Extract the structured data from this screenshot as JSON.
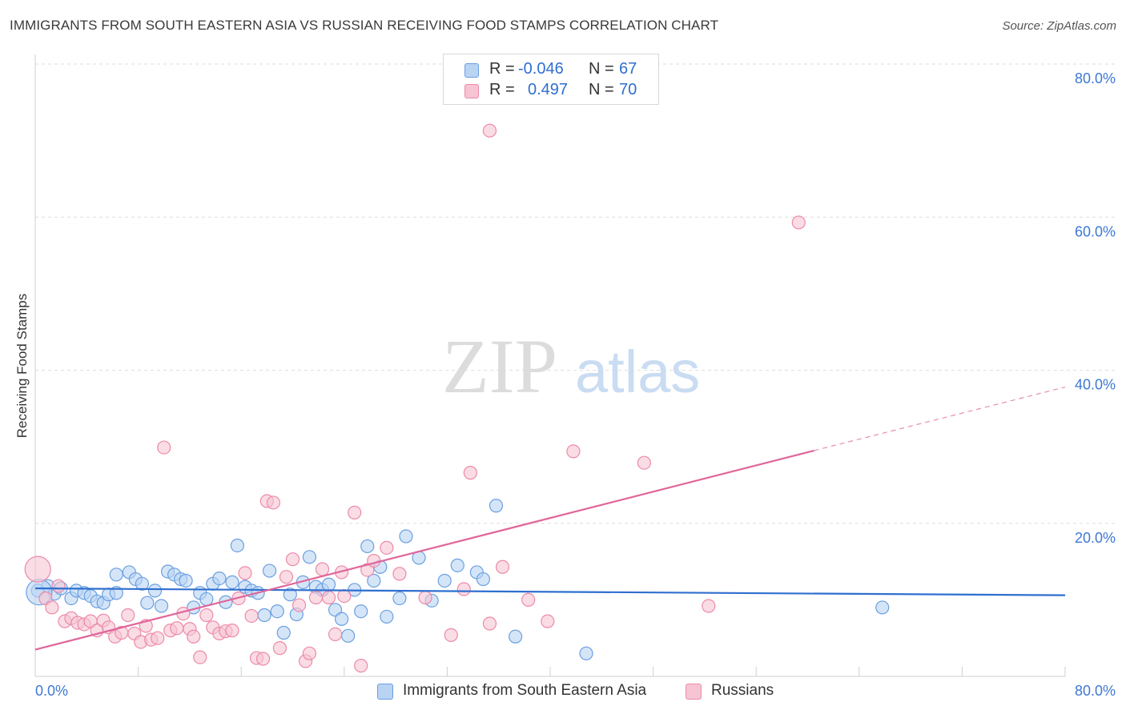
{
  "title": "IMMIGRANTS FROM SOUTH EASTERN ASIA VS RUSSIAN RECEIVING FOOD STAMPS CORRELATION CHART",
  "source": "Source: ZipAtlas.com",
  "watermark": {
    "zip": "ZIP",
    "atlas": "atlas"
  },
  "legend": {
    "r_label": "R =",
    "n_label": "N =",
    "rows": [
      {
        "r": "-0.046",
        "n": "67",
        "color": "#6a9fe0"
      },
      {
        "r": "0.497",
        "n": "70",
        "color": "#ec8aa8"
      }
    ]
  },
  "bottom_legend": [
    {
      "label": "Immigrants from South Eastern Asia",
      "color": "#b9d3f3"
    },
    {
      "label": "Russians",
      "color": "#f7c4d4"
    }
  ],
  "chart_data": {
    "type": "scatter",
    "title": "IMMIGRANTS FROM SOUTH EASTERN ASIA VS RUSSIAN RECEIVING FOOD STAMPS CORRELATION CHART",
    "xlabel": "",
    "ylabel": "Receiving Food Stamps",
    "xlim": [
      0,
      80
    ],
    "ylim": [
      0,
      80
    ],
    "x_tick_labels": [
      "0.0%",
      "80.0%"
    ],
    "y_tick_labels": [
      "20.0%",
      "40.0%",
      "60.0%",
      "80.0%"
    ],
    "y_ticks": [
      20,
      40,
      60,
      80
    ],
    "grid": true,
    "series": [
      {
        "name": "Immigrants from South Eastern Asia",
        "color": "#6a9fe0",
        "fill": "#b9d3f3",
        "trend": {
          "x": [
            0,
            80
          ],
          "y": [
            11.5,
            10.6
          ]
        },
        "points": [
          [
            0.2,
            11.2
          ],
          [
            1.0,
            11.8
          ],
          [
            1.5,
            10.8
          ],
          [
            2.0,
            11.5
          ],
          [
            2.8,
            10.2
          ],
          [
            3.2,
            11.2
          ],
          [
            3.8,
            10.9
          ],
          [
            4.3,
            10.5
          ],
          [
            4.8,
            9.8
          ],
          [
            5.3,
            9.6
          ],
          [
            5.7,
            10.7
          ],
          [
            6.3,
            10.9
          ],
          [
            6.3,
            13.3
          ],
          [
            7.3,
            13.6
          ],
          [
            7.8,
            12.7
          ],
          [
            8.3,
            12.1
          ],
          [
            8.7,
            9.6
          ],
          [
            9.3,
            11.2
          ],
          [
            9.8,
            9.2
          ],
          [
            10.3,
            13.7
          ],
          [
            10.8,
            13.3
          ],
          [
            11.3,
            12.7
          ],
          [
            11.7,
            12.5
          ],
          [
            12.3,
            9.0
          ],
          [
            12.8,
            10.9
          ],
          [
            13.3,
            10.1
          ],
          [
            13.8,
            12.1
          ],
          [
            14.3,
            12.8
          ],
          [
            14.8,
            9.7
          ],
          [
            15.3,
            12.3
          ],
          [
            15.7,
            17.1
          ],
          [
            16.3,
            11.7
          ],
          [
            16.8,
            11.2
          ],
          [
            17.3,
            10.9
          ],
          [
            17.8,
            8.0
          ],
          [
            18.2,
            13.8
          ],
          [
            18.8,
            8.5
          ],
          [
            19.3,
            5.7
          ],
          [
            19.8,
            10.7
          ],
          [
            20.3,
            8.1
          ],
          [
            20.8,
            12.3
          ],
          [
            21.3,
            15.6
          ],
          [
            21.8,
            11.7
          ],
          [
            22.3,
            11.3
          ],
          [
            22.8,
            12.0
          ],
          [
            23.3,
            8.7
          ],
          [
            23.8,
            7.5
          ],
          [
            24.3,
            5.3
          ],
          [
            24.8,
            11.3
          ],
          [
            25.3,
            8.5
          ],
          [
            25.8,
            17.0
          ],
          [
            26.3,
            12.5
          ],
          [
            26.8,
            14.3
          ],
          [
            27.3,
            7.8
          ],
          [
            28.3,
            10.2
          ],
          [
            28.8,
            18.3
          ],
          [
            29.8,
            15.5
          ],
          [
            30.8,
            9.9
          ],
          [
            31.8,
            12.5
          ],
          [
            32.8,
            14.5
          ],
          [
            34.3,
            13.6
          ],
          [
            34.8,
            12.7
          ],
          [
            35.8,
            22.3
          ],
          [
            37.3,
            5.2
          ],
          [
            42.8,
            3.0
          ],
          [
            65.8,
            9.0
          ],
          [
            0.3,
            11.0
          ]
        ]
      },
      {
        "name": "Russians",
        "color": "#ec8aa8",
        "fill": "#f7c4d4",
        "trend": {
          "x": [
            0,
            60.5
          ],
          "y": [
            3.5,
            29.5
          ],
          "dashed_to": [
            80,
            37.8
          ]
        },
        "points": [
          [
            0.2,
            14.0
          ],
          [
            0.8,
            10.2
          ],
          [
            1.3,
            9.0
          ],
          [
            1.8,
            11.8
          ],
          [
            2.3,
            7.2
          ],
          [
            2.8,
            7.6
          ],
          [
            3.3,
            7.0
          ],
          [
            3.8,
            6.8
          ],
          [
            4.3,
            7.2
          ],
          [
            4.8,
            6.0
          ],
          [
            5.3,
            7.3
          ],
          [
            5.7,
            6.4
          ],
          [
            6.2,
            5.2
          ],
          [
            6.7,
            5.7
          ],
          [
            7.2,
            8.0
          ],
          [
            7.7,
            5.6
          ],
          [
            8.2,
            4.5
          ],
          [
            8.6,
            6.6
          ],
          [
            9.0,
            4.8
          ],
          [
            9.5,
            5.0
          ],
          [
            10.0,
            29.9
          ],
          [
            10.5,
            6.0
          ],
          [
            11.0,
            6.3
          ],
          [
            11.5,
            8.2
          ],
          [
            12.0,
            6.2
          ],
          [
            12.3,
            5.2
          ],
          [
            12.8,
            2.5
          ],
          [
            13.3,
            8.0
          ],
          [
            13.8,
            6.4
          ],
          [
            14.3,
            5.6
          ],
          [
            14.8,
            5.9
          ],
          [
            15.3,
            6.0
          ],
          [
            15.8,
            10.2
          ],
          [
            16.3,
            13.5
          ],
          [
            16.8,
            7.9
          ],
          [
            17.2,
            2.4
          ],
          [
            17.7,
            2.3
          ],
          [
            18.0,
            22.9
          ],
          [
            18.5,
            22.7
          ],
          [
            19.0,
            3.7
          ],
          [
            19.5,
            13.0
          ],
          [
            20.0,
            15.3
          ],
          [
            20.5,
            9.3
          ],
          [
            21.0,
            2.0
          ],
          [
            21.3,
            3.0
          ],
          [
            21.8,
            10.3
          ],
          [
            22.3,
            14.0
          ],
          [
            22.8,
            10.3
          ],
          [
            23.3,
            5.5
          ],
          [
            23.8,
            13.6
          ],
          [
            24.8,
            21.4
          ],
          [
            25.3,
            1.4
          ],
          [
            25.8,
            13.9
          ],
          [
            26.3,
            15.1
          ],
          [
            27.3,
            16.8
          ],
          [
            28.3,
            13.4
          ],
          [
            30.3,
            10.3
          ],
          [
            32.3,
            5.4
          ],
          [
            33.3,
            11.4
          ],
          [
            33.8,
            26.6
          ],
          [
            35.3,
            6.9
          ],
          [
            35.3,
            71.3
          ],
          [
            36.3,
            14.3
          ],
          [
            38.3,
            10.0
          ],
          [
            39.8,
            7.2
          ],
          [
            41.8,
            29.4
          ],
          [
            47.3,
            27.9
          ],
          [
            52.3,
            9.2
          ],
          [
            59.3,
            59.3
          ],
          [
            24.0,
            10.5
          ]
        ]
      }
    ]
  }
}
